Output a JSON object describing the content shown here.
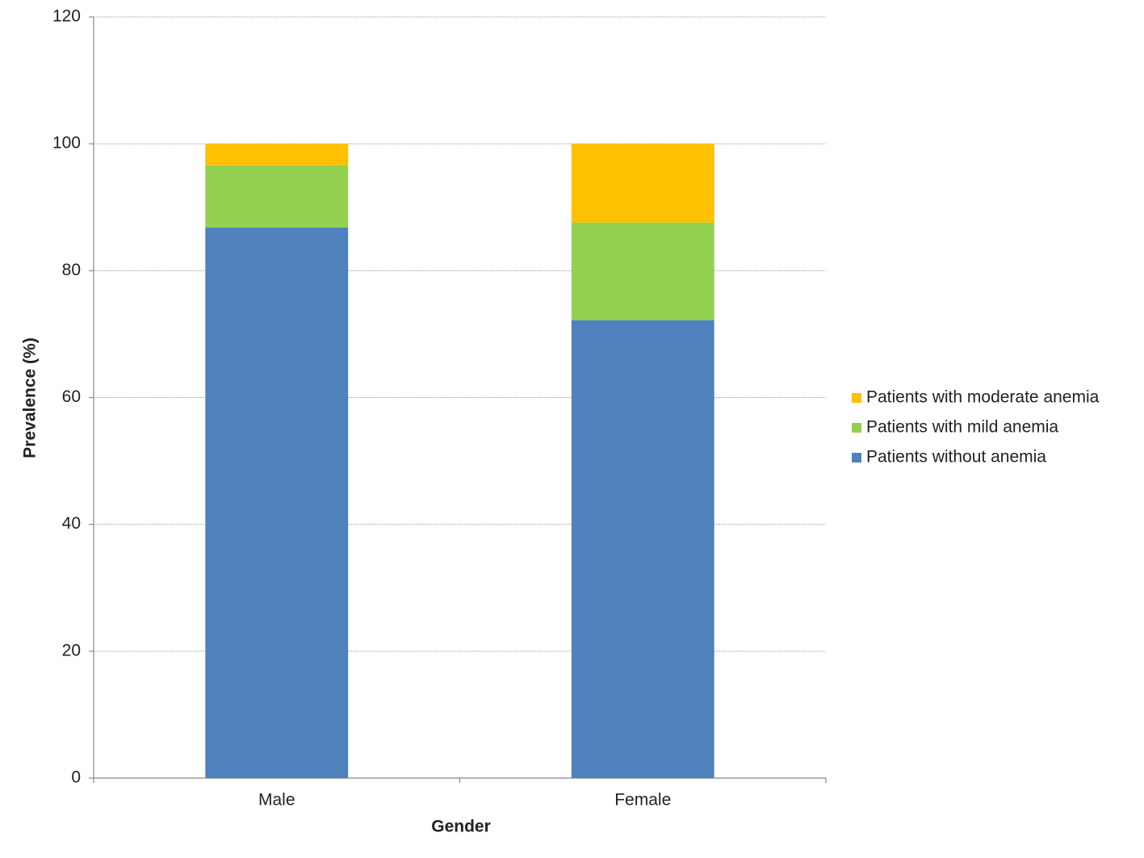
{
  "chart_data": {
    "type": "stacked_bar",
    "categories": [
      "Male",
      "Female"
    ],
    "series": [
      {
        "name": "Patients without anemia",
        "color": "#4f81bd",
        "values": [
          86.8,
          72.2
        ]
      },
      {
        "name": "Patients with mild anemia",
        "color": "#92d050",
        "values": [
          9.8,
          15.4
        ]
      },
      {
        "name": "Patients with moderate anemia",
        "color": "#ffc000",
        "values": [
          3.4,
          12.4
        ]
      }
    ],
    "xlabel": "Gender",
    "ylabel": "Prevalence (%)",
    "ylim": [
      0,
      120
    ],
    "yticks": [
      0,
      20,
      40,
      60,
      80,
      100,
      120
    ],
    "grid": true,
    "legend": "right"
  }
}
